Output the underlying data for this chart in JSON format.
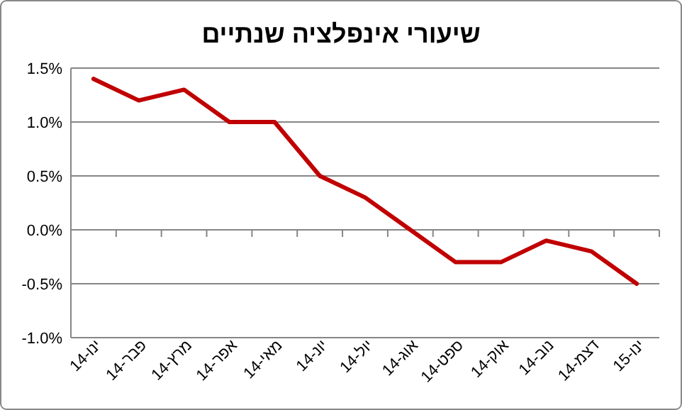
{
  "chart_data": {
    "type": "line",
    "title": "שיעורי אינפלציה שנתיים",
    "categories": [
      "ינו-14",
      "פבר-14",
      "מרץ-14",
      "אפר-14",
      "מאי-14",
      "יונ-14",
      "יול-14",
      "אוג-14",
      "ספט-14",
      "אוק-14",
      "נוב-14",
      "דצמ-14",
      "ינו-15"
    ],
    "series": [
      {
        "color": "#c00000",
        "values": [
          1.4,
          1.2,
          1.3,
          1.0,
          1.0,
          0.5,
          0.3,
          0.0,
          -0.3,
          -0.3,
          -0.1,
          -0.2,
          -0.5
        ]
      }
    ],
    "ylim": [
      -1.0,
      1.5
    ],
    "yticks": [
      {
        "value": -1.0,
        "label": "-1.0%"
      },
      {
        "value": -0.5,
        "label": "-0.5%"
      },
      {
        "value": 0,
        "label": "0.0%"
      },
      {
        "value": 0.5,
        "label": "0.5%"
      },
      {
        "value": 1.0,
        "label": "1.0%"
      },
      {
        "value": 1.5,
        "label": "1.5%"
      }
    ],
    "grid": "y",
    "marker": "none",
    "line_style": "solid"
  }
}
